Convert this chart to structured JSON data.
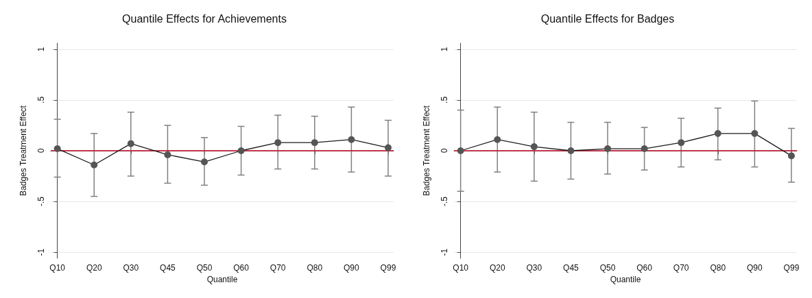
{
  "chart_data": [
    {
      "type": "line",
      "title": "Quantile Effects for Achievements",
      "xlabel": "Quantile",
      "ylabel": "Badges Treatment Effect",
      "categories": [
        "Q10",
        "Q20",
        "Q30",
        "Q45",
        "Q50",
        "Q60",
        "Q70",
        "Q80",
        "Q90",
        "Q99"
      ],
      "series": [
        {
          "color": "#555555",
          "values": [
            0.02,
            -0.14,
            0.07,
            -0.04,
            -0.11,
            0,
            0.08,
            0.08,
            0.11,
            0.03
          ],
          "errors": [
            [
              -0.26,
              0.31
            ],
            [
              -0.45,
              0.17
            ],
            [
              -0.25,
              0.38
            ],
            [
              -0.32,
              0.25
            ],
            [
              -0.34,
              0.13
            ],
            [
              -0.24,
              0.24
            ],
            [
              -0.18,
              0.35
            ],
            [
              -0.18,
              0.34
            ],
            [
              -0.21,
              0.43
            ],
            [
              -0.25,
              0.3
            ]
          ]
        }
      ],
      "ylim": [
        -1.06,
        1.06
      ],
      "yticks": [
        {
          "value": -1,
          "label": "-1"
        },
        {
          "value": -0.5,
          "label": "-.5"
        },
        {
          "value": 0,
          "label": "0"
        },
        {
          "value": 0.5,
          "label": ".5"
        },
        {
          "value": 1,
          "label": "1"
        }
      ],
      "ref_lines": [
        {
          "axis": "y",
          "value": 0,
          "color": "#c8102e"
        }
      ],
      "grid": "y",
      "marker": "circle",
      "line_style": "solid"
    },
    {
      "type": "line",
      "title": "Quantile Effects for Badges",
      "xlabel": "Quantile",
      "ylabel": "Badges Treatment Effect",
      "categories": [
        "Q10",
        "Q20",
        "Q30",
        "Q45",
        "Q50",
        "Q60",
        "Q70",
        "Q80",
        "Q90",
        "Q99"
      ],
      "series": [
        {
          "color": "#555555",
          "values": [
            0,
            0.11,
            0.04,
            0,
            0.02,
            0.02,
            0.08,
            0.17,
            0.17,
            -0.05
          ],
          "errors": [
            [
              -0.4,
              0.4
            ],
            [
              -0.21,
              0.43
            ],
            [
              -0.3,
              0.38
            ],
            [
              -0.28,
              0.28
            ],
            [
              -0.23,
              0.28
            ],
            [
              -0.19,
              0.23
            ],
            [
              -0.16,
              0.32
            ],
            [
              -0.09,
              0.42
            ],
            [
              -0.16,
              0.49
            ],
            [
              -0.31,
              0.22
            ]
          ]
        }
      ],
      "ylim": [
        -1.06,
        1.06
      ],
      "yticks": [
        {
          "value": -1,
          "label": "-1"
        },
        {
          "value": -0.5,
          "label": "-.5"
        },
        {
          "value": 0,
          "label": "0"
        },
        {
          "value": 0.5,
          "label": ".5"
        },
        {
          "value": 1,
          "label": "1"
        }
      ],
      "ref_lines": [
        {
          "axis": "y",
          "value": 0,
          "color": "#c8102e"
        }
      ],
      "grid": "y",
      "marker": "circle",
      "line_style": "solid"
    }
  ]
}
